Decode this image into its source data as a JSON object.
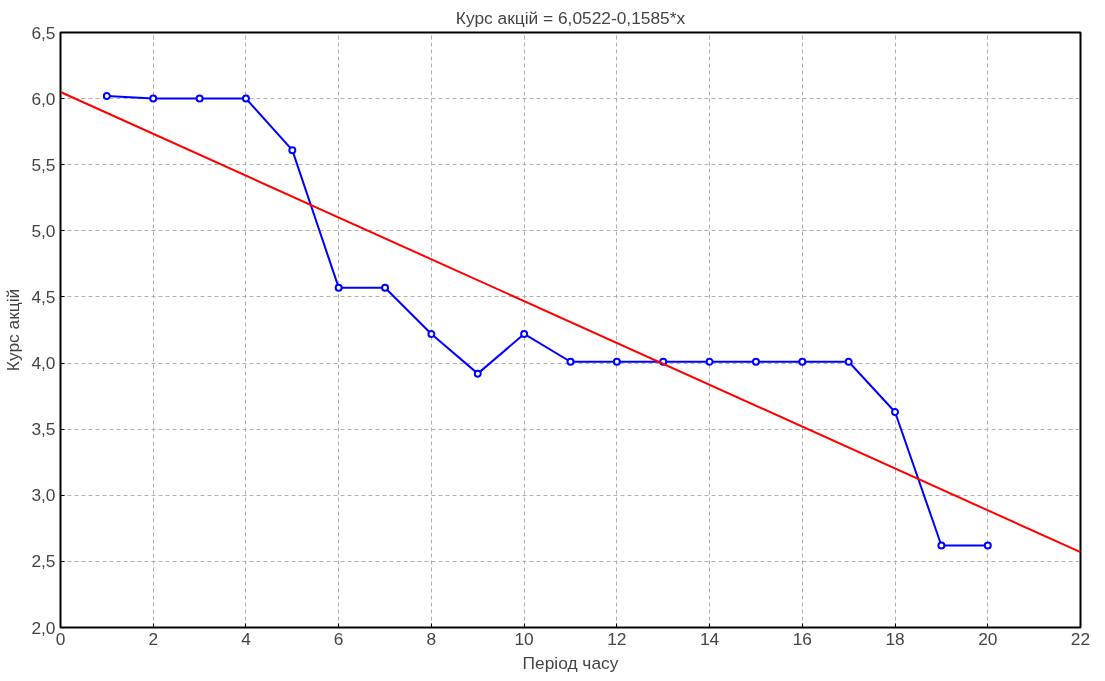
{
  "chart_data": {
    "type": "line",
    "title": "Курс акцій = 6,0522-0,1585*x",
    "xlabel": "Період часу",
    "ylabel": "Курс акцій",
    "series": [
      {
        "color": "#0000ff",
        "marker": "circle",
        "x": [
          1,
          2,
          3,
          4,
          5,
          6,
          7,
          8,
          9,
          10,
          11,
          12,
          13,
          14,
          15,
          16,
          17,
          18,
          19,
          20
        ],
        "values": [
          6.02,
          6.0,
          6.0,
          6.0,
          5.61,
          4.57,
          4.57,
          4.22,
          3.92,
          4.22,
          4.01,
          4.01,
          4.01,
          4.01,
          4.01,
          4.01,
          4.01,
          3.63,
          2.62,
          2.62
        ]
      },
      {
        "color": "#ff0000",
        "marker": "none",
        "x": [
          0,
          22
        ],
        "values": [
          6.05,
          2.57
        ]
      }
    ],
    "xlim": [
      0,
      22
    ],
    "ylim": [
      2.0,
      6.5
    ],
    "xticks": [
      0,
      2,
      4,
      6,
      8,
      10,
      12,
      14,
      16,
      18,
      20,
      22
    ],
    "yticks": [
      {
        "value": 2.0,
        "label": "2,0"
      },
      {
        "value": 2.5,
        "label": "2,5"
      },
      {
        "value": 3.0,
        "label": "3,0"
      },
      {
        "value": 3.5,
        "label": "3,5"
      },
      {
        "value": 4.0,
        "label": "4,0"
      },
      {
        "value": 4.5,
        "label": "4,5"
      },
      {
        "value": 5.0,
        "label": "5,0"
      },
      {
        "value": 5.5,
        "label": "5,5"
      },
      {
        "value": 6.0,
        "label": "6,0"
      },
      {
        "value": 6.5,
        "label": "6,5"
      }
    ],
    "grid": true,
    "line_style": "solid"
  }
}
